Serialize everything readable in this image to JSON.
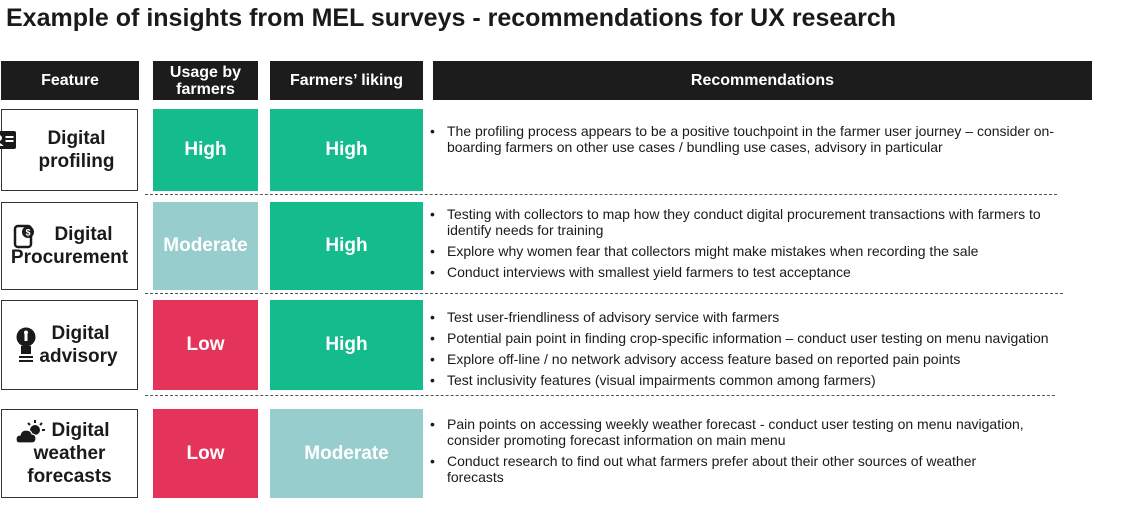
{
  "title": "Example of insights from MEL surveys - recommendations for UX research",
  "headers": {
    "feature": "Feature",
    "usage_line1": "Usage by",
    "usage_line2": "farmers",
    "liking": "Farmers’ liking",
    "recommendations": "Recommendations"
  },
  "colors": {
    "high": "#14bb8d",
    "moderate": "#98cdcd",
    "low": "#e5345a",
    "header": "#1c1c1c"
  },
  "rows": [
    {
      "feature_line1": "Digital",
      "feature_line2": "profiling",
      "icon": "id-card-icon",
      "usage": "High",
      "liking": "High",
      "recommendations": [
        "The profiling process appears to be a positive touchpoint in the farmer user journey – consider on-boarding farmers on other use cases / bundling use cases, advisory in particular"
      ]
    },
    {
      "feature_line1": "Digital",
      "feature_line2": "Procurement",
      "icon": "payment-icon",
      "usage": "Moderate",
      "liking": "High",
      "recommendations": [
        "Testing with collectors to map how they conduct digital procurement transactions with farmers to identify needs for training",
        "Explore why women fear that collectors might make mistakes when recording the sale",
        "Conduct interviews with smallest yield farmers to test acceptance"
      ]
    },
    {
      "feature_line1": "Digital",
      "feature_line2": "advisory",
      "icon": "lightbulb-icon",
      "usage": "Low",
      "liking": "High",
      "recommendations": [
        "Test user-friendliness of advisory service with farmers",
        "Potential pain point in finding crop-specific information – conduct user testing on menu navigation",
        "Explore off-line / no network advisory access feature based on reported pain points",
        "Test inclusivity features (visual impairments common among farmers)"
      ]
    },
    {
      "feature_line1": "Digital",
      "feature_line2": "weather",
      "feature_line3": "forecasts",
      "icon": "weather-icon",
      "usage": "Low",
      "liking": "Moderate",
      "recommendations": [
        "Pain points on accessing weekly weather forecast - conduct user testing on menu navigation, consider promoting forecast information on main menu",
        "Conduct research to find out what farmers prefer about their other sources of weather forecasts"
      ]
    }
  ]
}
